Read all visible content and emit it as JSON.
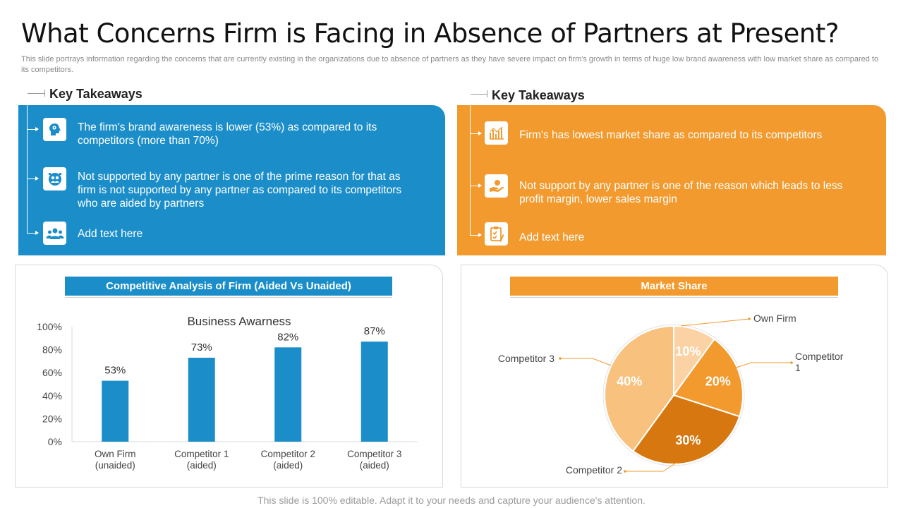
{
  "title": "What Concerns Firm is Facing in Absence of Partners at Present?",
  "subtitle": "This slide portrays information regarding the concerns that are currently existing in the organizations due to absence of partners as they have severe impact on firm's growth in terms of huge low brand awareness with low market share as compared to its competitors.",
  "left_panel": {
    "heading": "Key Takeaways",
    "items": [
      {
        "icon": "brain-head-icon",
        "text": "The firm's brand awareness is lower (53%) as compared to its competitors (more than 70%)"
      },
      {
        "icon": "partner-badge-icon",
        "text": "Not supported by any partner is one of the prime reason for that as firm is not supported by any partner as compared to its competitors who are aided by partners"
      },
      {
        "icon": "team-icon",
        "text": "Add text here"
      }
    ]
  },
  "right_panel": {
    "heading": "Key Takeaways",
    "items": [
      {
        "icon": "market-chart-icon",
        "text": "Firm's has lowest market share as compared to its competitors"
      },
      {
        "icon": "hand-coin-icon",
        "text": "Not support by any partner is one of the reason which leads to less profit margin, lower sales margin"
      },
      {
        "icon": "checklist-icon",
        "text": "Add text here"
      }
    ]
  },
  "colors": {
    "blue": "#1b8ec9",
    "orange": "#f29a2e"
  },
  "chart_data": [
    {
      "type": "bar",
      "banner": "Competitive Analysis of Firm (Aided Vs Unaided)",
      "title": "Business Awarness",
      "categories": [
        [
          "Own Firm",
          "(unaided)"
        ],
        [
          "Competitor 1",
          "(aided)"
        ],
        [
          "Competitor 2",
          "(aided)"
        ],
        [
          "Competitor 3",
          "(aided)"
        ]
      ],
      "values": [
        53,
        73,
        82,
        87
      ],
      "value_labels": [
        "53%",
        "73%",
        "82%",
        "87%"
      ],
      "yticks": [
        "0%",
        "20%",
        "40%",
        "60%",
        "80%",
        "100%"
      ],
      "ylim": [
        0,
        100
      ],
      "color": "#1b8ec9"
    },
    {
      "type": "pie",
      "banner": "Market Share",
      "slices": [
        {
          "name": "Own Firm",
          "value": 10,
          "label": "10%",
          "color": "#fbd2a3"
        },
        {
          "name": "Competitor 1",
          "value": 20,
          "label": "20%",
          "color": "#f29a2e"
        },
        {
          "name": "Competitor 2",
          "value": 30,
          "label": "30%",
          "color": "#d6780f"
        },
        {
          "name": "Competitor 3",
          "value": 40,
          "label": "40%",
          "color": "#f8c17e"
        }
      ]
    }
  ],
  "footer": "This slide is 100% editable. Adapt it to your needs and capture your audience's attention."
}
